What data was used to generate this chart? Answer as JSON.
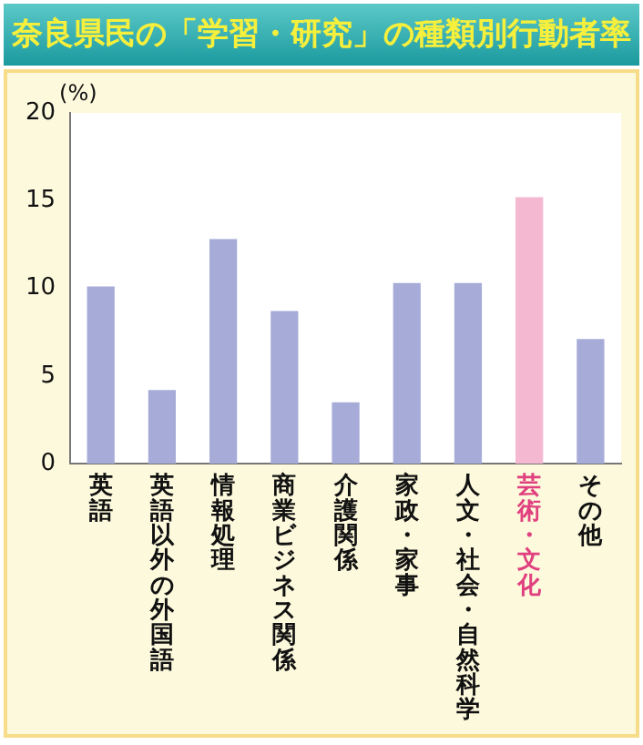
{
  "chart_data": {
    "type": "bar",
    "title": "奈良県民の「学習・研究」の種類別行動者率",
    "ylabel": "(%)",
    "categories": [
      "英語",
      "英語以外の外国語",
      "情報処理",
      "商業ビジネス関係",
      "介護関係",
      "家政・家事",
      "人文・社会・自然科学",
      "芸術・文化",
      "その他"
    ],
    "values": [
      10.1,
      4.2,
      12.8,
      8.7,
      3.5,
      10.3,
      10.3,
      15.2,
      7.1
    ],
    "colors": [
      "#a6abd8",
      "#a6abd8",
      "#a6abd8",
      "#a6abd8",
      "#a6abd8",
      "#a6abd8",
      "#a6abd8",
      "#f4b8d0",
      "#a6abd8"
    ],
    "ylim": [
      0,
      20
    ],
    "yticks": [
      0,
      5,
      10,
      15,
      20
    ],
    "grid": false
  }
}
